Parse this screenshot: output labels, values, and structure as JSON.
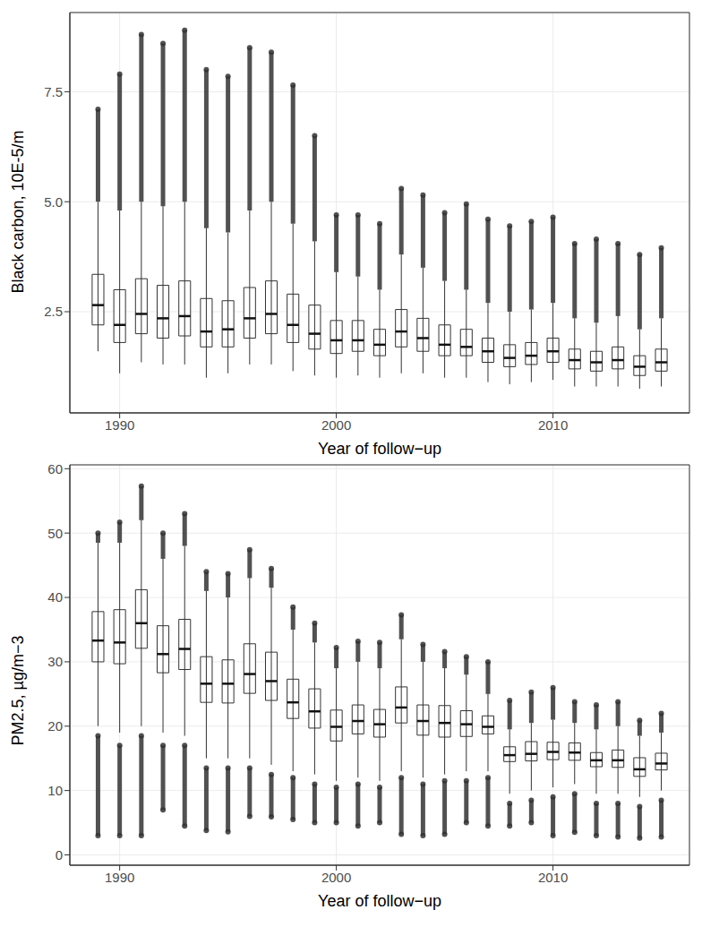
{
  "chart_data": [
    {
      "type": "boxplot",
      "x_label": "Year of follow−up",
      "y_label": "Black carbon, 10E-5/m",
      "x": [
        1989,
        1990,
        1991,
        1992,
        1993,
        1994,
        1995,
        1996,
        1997,
        1998,
        1999,
        2000,
        2001,
        2002,
        2003,
        2004,
        2005,
        2006,
        2007,
        2008,
        2009,
        2010,
        2011,
        2012,
        2013,
        2014,
        2015
      ],
      "xlim": [
        1987.7,
        2016.3
      ],
      "xticks": [
        1990,
        2000,
        2010
      ],
      "ylim": [
        0.2,
        9.3
      ],
      "yticks": [
        2.5,
        {
          "value": 5.0,
          "label": "5.0"
        },
        7.5
      ],
      "grid": true,
      "color": "#333333",
      "boxes": {
        "whisker_low": [
          1.6,
          1.1,
          1.35,
          1.3,
          1.3,
          1.0,
          1.1,
          1.3,
          1.3,
          1.15,
          1.05,
          1.0,
          1.05,
          1.0,
          1.1,
          1.1,
          1.0,
          1.0,
          0.9,
          0.85,
          0.9,
          0.95,
          0.8,
          0.8,
          0.8,
          0.75,
          0.8
        ],
        "q1": [
          2.2,
          1.8,
          2.0,
          1.9,
          1.95,
          1.7,
          1.7,
          1.9,
          2.0,
          1.8,
          1.65,
          1.55,
          1.6,
          1.5,
          1.7,
          1.6,
          1.5,
          1.5,
          1.35,
          1.25,
          1.3,
          1.35,
          1.2,
          1.15,
          1.2,
          1.05,
          1.15
        ],
        "median": [
          2.65,
          2.2,
          2.45,
          2.35,
          2.4,
          2.05,
          2.1,
          2.35,
          2.45,
          2.2,
          2.0,
          1.85,
          1.85,
          1.75,
          2.05,
          1.9,
          1.75,
          1.7,
          1.6,
          1.45,
          1.5,
          1.6,
          1.4,
          1.35,
          1.4,
          1.25,
          1.35
        ],
        "q3": [
          3.35,
          3.0,
          3.25,
          3.1,
          3.2,
          2.8,
          2.75,
          3.05,
          3.2,
          2.9,
          2.65,
          2.3,
          2.3,
          2.1,
          2.55,
          2.35,
          2.2,
          2.1,
          1.9,
          1.75,
          1.8,
          1.9,
          1.65,
          1.6,
          1.7,
          1.5,
          1.65
        ],
        "whisker_high": [
          5.0,
          4.8,
          5.0,
          4.9,
          5.0,
          4.4,
          4.3,
          4.8,
          5.0,
          4.5,
          4.1,
          3.4,
          3.3,
          3.0,
          3.8,
          3.5,
          3.2,
          3.0,
          2.7,
          2.5,
          2.55,
          2.7,
          2.35,
          2.25,
          2.4,
          2.1,
          2.35
        ],
        "outliers_high_max": [
          7.1,
          7.9,
          8.8,
          8.6,
          8.9,
          8.0,
          7.85,
          8.5,
          8.4,
          7.65,
          6.5,
          4.7,
          4.7,
          4.5,
          5.3,
          5.15,
          4.75,
          4.95,
          4.6,
          4.45,
          4.55,
          4.65,
          4.05,
          4.15,
          4.05,
          3.8,
          3.95
        ]
      }
    },
    {
      "type": "boxplot",
      "x_label": "Year of follow−up",
      "y_label": "PM2.5, µg/m−3",
      "x": [
        1989,
        1990,
        1991,
        1992,
        1993,
        1994,
        1995,
        1996,
        1997,
        1998,
        1999,
        2000,
        2001,
        2002,
        2003,
        2004,
        2005,
        2006,
        2007,
        2008,
        2009,
        2010,
        2011,
        2012,
        2013,
        2014,
        2015
      ],
      "xlim": [
        1987.7,
        2016.3
      ],
      "xticks": [
        1990,
        2000,
        2010
      ],
      "ylim": [
        -1.6,
        60.6
      ],
      "yticks": [
        0,
        10,
        20,
        30,
        40,
        50,
        60
      ],
      "grid": true,
      "color": "#333333",
      "boxes": {
        "outliers_low_min": [
          3,
          3,
          3,
          7,
          4.5,
          3.8,
          3.6,
          6,
          5.9,
          5.5,
          5,
          5,
          4.5,
          5,
          3.2,
          3,
          3.2,
          5,
          4.5,
          4.5,
          5,
          3,
          3.5,
          3,
          2.8,
          2.6,
          2.8
        ],
        "outliers_low_max": [
          18.5,
          17,
          18.5,
          17,
          17,
          13.5,
          13.5,
          13.5,
          12.5,
          12,
          11,
          10.5,
          11,
          10.5,
          12,
          11,
          11.5,
          11.5,
          12,
          8,
          8.5,
          9,
          9.5,
          8,
          8,
          7.5,
          8.5
        ],
        "whisker_low": [
          20,
          19,
          20,
          19,
          18.5,
          15,
          15,
          15,
          14,
          13,
          12.5,
          11.5,
          12,
          11.5,
          13,
          12,
          12.5,
          13,
          13,
          9.5,
          10,
          10.5,
          11,
          9.5,
          9.5,
          9,
          10
        ],
        "q1": [
          30,
          29.7,
          32.1,
          28.3,
          28.8,
          23.7,
          23.6,
          25.1,
          24,
          21.2,
          19.7,
          17.7,
          18.8,
          18.3,
          20.5,
          18.6,
          18.3,
          18.4,
          18.8,
          14.5,
          14.6,
          14.8,
          14.7,
          13.7,
          13.6,
          12.2,
          13.2
        ],
        "median": [
          33.3,
          33,
          36,
          31.2,
          32,
          26.6,
          26.6,
          28.1,
          27,
          23.7,
          22.3,
          19.9,
          20.8,
          20.3,
          22.9,
          20.8,
          20.5,
          20.3,
          19.9,
          15.5,
          15.7,
          16,
          15.9,
          14.7,
          14.7,
          13.3,
          14.2
        ],
        "q3": [
          37.8,
          38.1,
          41.2,
          35.6,
          36.6,
          30.8,
          30.3,
          32.8,
          31.5,
          27.3,
          25.8,
          22.5,
          23.3,
          22.6,
          26.1,
          23.3,
          23.2,
          22.4,
          21.6,
          16.8,
          17.6,
          17.5,
          17.4,
          15.9,
          16.3,
          15.1,
          15.8
        ],
        "whisker_high": [
          48.5,
          48.5,
          52,
          46,
          48,
          41,
          40,
          43,
          41.5,
          35,
          33,
          29,
          30,
          29,
          33.5,
          30,
          29,
          28,
          25,
          19.5,
          20.5,
          21,
          20.5,
          19.5,
          20,
          18.5,
          19
        ],
        "outliers_high_max": [
          50,
          51.7,
          57.3,
          50,
          53,
          44,
          43.7,
          47.4,
          44.5,
          38.5,
          36,
          32.2,
          33.2,
          33,
          37.3,
          32.7,
          31.6,
          30.8,
          30,
          24,
          25.3,
          26,
          23.8,
          23.3,
          23.8,
          20.9,
          22
        ]
      }
    }
  ]
}
